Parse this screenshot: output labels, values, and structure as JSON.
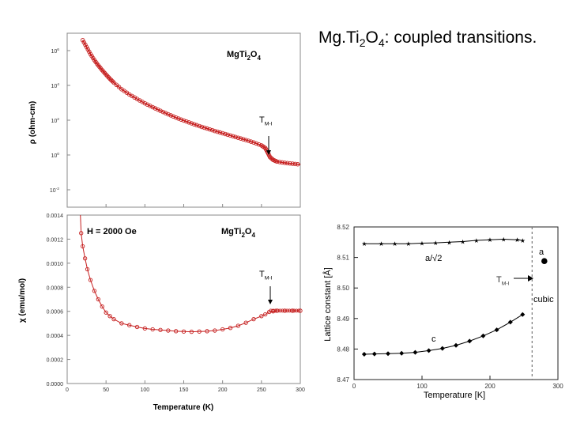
{
  "slide": {
    "title_parts": [
      "Mg.Ti",
      "2",
      "O",
      "4",
      ": coupled transitions."
    ]
  },
  "chart_data": [
    {
      "type": "scatter",
      "title": "MgTi2O4",
      "xlabel": "",
      "ylabel": "ρ (ohm-cm)",
      "scale_y": "log",
      "xlim": [
        0,
        300
      ],
      "ylim": [
        -3,
        7
      ],
      "yticks": [
        {
          "label": "10",
          "exp": "6",
          "v": 6
        },
        {
          "label": "10",
          "exp": "4",
          "v": 4
        },
        {
          "label": "10",
          "exp": "2",
          "v": 2
        },
        {
          "label": "10",
          "exp": "0",
          "v": 0
        },
        {
          "label": "10",
          "exp": "-2",
          "v": -2
        }
      ],
      "annotation": {
        "text": "T",
        "sub": "M-I",
        "x": 258
      },
      "series": [
        {
          "name": "",
          "color": "#c62020",
          "log_values": [
            [
              20,
              6.6
            ],
            [
              25,
              6.2
            ],
            [
              30,
              5.8
            ],
            [
              35,
              5.45
            ],
            [
              40,
              5.15
            ],
            [
              45,
              4.88
            ],
            [
              50,
              4.62
            ],
            [
              55,
              4.38
            ],
            [
              60,
              4.16
            ],
            [
              70,
              3.78
            ],
            [
              80,
              3.48
            ],
            [
              90,
              3.22
            ],
            [
              100,
              2.97
            ],
            [
              110,
              2.75
            ],
            [
              120,
              2.54
            ],
            [
              130,
              2.34
            ],
            [
              140,
              2.15
            ],
            [
              150,
              1.98
            ],
            [
              160,
              1.82
            ],
            [
              170,
              1.66
            ],
            [
              180,
              1.52
            ],
            [
              190,
              1.38
            ],
            [
              200,
              1.25
            ],
            [
              210,
              1.12
            ],
            [
              220,
              0.99
            ],
            [
              230,
              0.86
            ],
            [
              240,
              0.72
            ],
            [
              250,
              0.55
            ],
            [
              255,
              0.4
            ],
            [
              258,
              0.15
            ],
            [
              261,
              -0.12
            ],
            [
              265,
              -0.28
            ],
            [
              270,
              -0.38
            ],
            [
              280,
              -0.45
            ],
            [
              290,
              -0.5
            ],
            [
              300,
              -0.55
            ]
          ]
        }
      ]
    },
    {
      "type": "scatter",
      "title": "MgTi2O4",
      "subtitle": "H = 2000 Oe",
      "xlabel": "Temperature (K)",
      "ylabel": "χ (emu/mol)",
      "xlim": [
        0,
        300
      ],
      "ylim": [
        0,
        0.0014
      ],
      "xticks": [
        "0",
        "50",
        "100",
        "150",
        "200",
        "250",
        "300"
      ],
      "yticks": [
        "0.0000",
        "0.0002",
        "0.0004",
        "0.0006",
        "0.0008",
        "0.0010",
        "0.0012",
        "0.0014"
      ],
      "annotation": {
        "text": "T",
        "sub": "M-I",
        "x": 258
      },
      "series": [
        {
          "name": "",
          "color": "#c62020",
          "values": [
            [
              18,
              0.00125
            ],
            [
              20,
              0.00114
            ],
            [
              23,
              0.00104
            ],
            [
              26,
              0.00095
            ],
            [
              30,
              0.00086
            ],
            [
              35,
              0.00077
            ],
            [
              40,
              0.0007
            ],
            [
              45,
              0.00064
            ],
            [
              50,
              0.00059
            ],
            [
              55,
              0.00056
            ],
            [
              60,
              0.000535
            ],
            [
              70,
              0.0005
            ],
            [
              80,
              0.000485
            ],
            [
              90,
              0.00047
            ],
            [
              100,
              0.000458
            ],
            [
              110,
              0.00045
            ],
            [
              120,
              0.000445
            ],
            [
              130,
              0.00044
            ],
            [
              140,
              0.000435
            ],
            [
              150,
              0.000432
            ],
            [
              160,
              0.00043
            ],
            [
              170,
              0.000432
            ],
            [
              180,
              0.000435
            ],
            [
              190,
              0.00044
            ],
            [
              200,
              0.00045
            ],
            [
              210,
              0.000462
            ],
            [
              220,
              0.00048
            ],
            [
              230,
              0.000505
            ],
            [
              240,
              0.000535
            ],
            [
              250,
              0.00056
            ],
            [
              255,
              0.000575
            ],
            [
              260,
              0.000595
            ],
            [
              265,
              0.0006
            ],
            [
              270,
              0.000605
            ],
            [
              280,
              0.000605
            ],
            [
              290,
              0.000605
            ],
            [
              300,
              0.000605
            ]
          ]
        }
      ]
    },
    {
      "type": "line",
      "title": "",
      "xlabel": "Temperature [K]",
      "ylabel": "Lattice constant [Å]",
      "xlim": [
        0,
        300
      ],
      "ylim": [
        8.47,
        8.52
      ],
      "xticks": [
        "0",
        "100",
        "200",
        "300"
      ],
      "yticks": [
        "8.47",
        "8.48",
        "8.49",
        "8.50",
        "8.51",
        "8.52"
      ],
      "labels": {
        "a2": "a/√2",
        "c": "c",
        "tmi": "T",
        "tmi_sub": "M-I",
        "cubic": "cubic",
        "a": "a"
      },
      "transition_T": 262,
      "series": [
        {
          "name": "",
          "marker": "star",
          "values": [
            [
              15,
              8.5145
            ],
            [
              40,
              8.5145
            ],
            [
              60,
              8.5145
            ],
            [
              80,
              8.5145
            ],
            [
              100,
              8.5147
            ],
            [
              120,
              8.5148
            ],
            [
              140,
              8.515
            ],
            [
              160,
              8.5152
            ],
            [
              180,
              8.5156
            ],
            [
              200,
              8.5158
            ],
            [
              220,
              8.516
            ],
            [
              240,
              8.5158
            ],
            [
              248,
              8.5156
            ]
          ]
        },
        {
          "name": "",
          "marker": "diamond",
          "values": [
            [
              15,
              8.4783
            ],
            [
              30,
              8.4784
            ],
            [
              50,
              8.4785
            ],
            [
              70,
              8.4786
            ],
            [
              90,
              8.4789
            ],
            [
              110,
              8.4795
            ],
            [
              130,
              8.4802
            ],
            [
              150,
              8.4812
            ],
            [
              170,
              8.4826
            ],
            [
              190,
              8.4843
            ],
            [
              210,
              8.4863
            ],
            [
              230,
              8.4888
            ],
            [
              248,
              8.4913
            ]
          ]
        },
        {
          "name": "",
          "marker": "dot",
          "values": [
            [
              280,
              8.5088
            ]
          ]
        }
      ]
    }
  ]
}
